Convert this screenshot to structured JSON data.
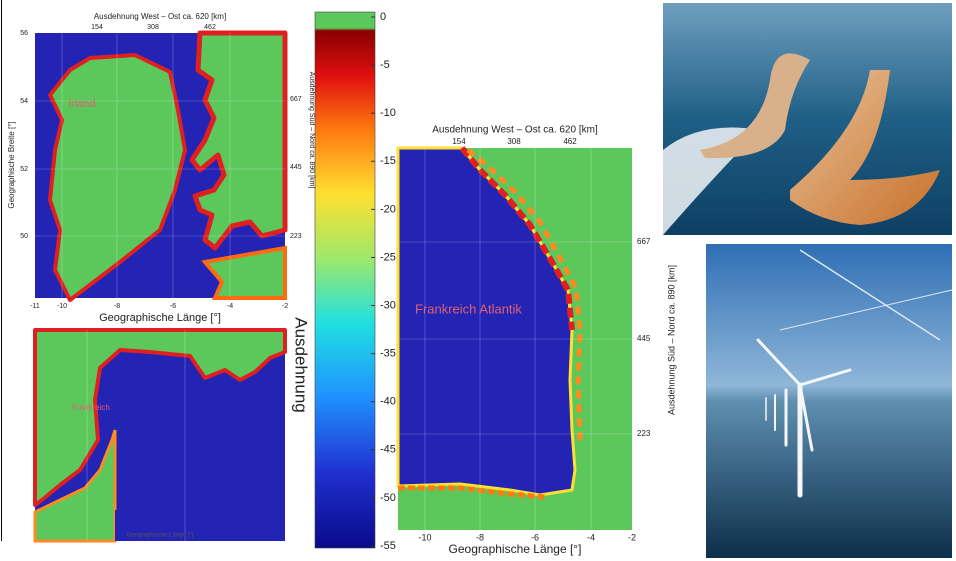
{
  "ireland_map": {
    "title": "Ausdehnung West – Ost ca. 620  [km]",
    "top_ticks": [
      "154",
      "308",
      "462"
    ],
    "left_label": "Geographische Breite [°]",
    "left_ticks": [
      "56",
      "54",
      "52",
      "50"
    ],
    "right_ticks": [
      "667",
      "445",
      "223"
    ],
    "bottom_ticks": [
      "-11",
      "-10",
      "-8",
      "-6",
      "-4",
      "-2"
    ],
    "x_label": "Geographische Länge  [°]",
    "region_label": "Irland"
  },
  "france_small_map": {
    "region_label": "Frankreich",
    "x_label": "Geographische Länge [°]"
  },
  "colorbar": {
    "ticks": [
      0,
      -5,
      -10,
      -15,
      -20,
      -25,
      -30,
      -35,
      -40,
      -45,
      -50,
      -55
    ],
    "label": "Ausdehnung",
    "side_label": "Ausdehnung Süd – Nord ca. 890 [km]"
  },
  "france_atlantic_map": {
    "title": "Ausdehnung West – Ost ca. 620  [km]",
    "top_ticks": [
      "154",
      "308",
      "462"
    ],
    "right_ticks": [
      "667",
      "445",
      "223"
    ],
    "bottom_ticks": [
      "-10",
      "-8",
      "-6",
      "-4",
      "-2"
    ],
    "x_label": "Geographische Länge  [°]",
    "right_label": "Ausdehnung Süd – Nord ca. 890  [km]",
    "region_label": "Frankreich Atlantik"
  }
}
